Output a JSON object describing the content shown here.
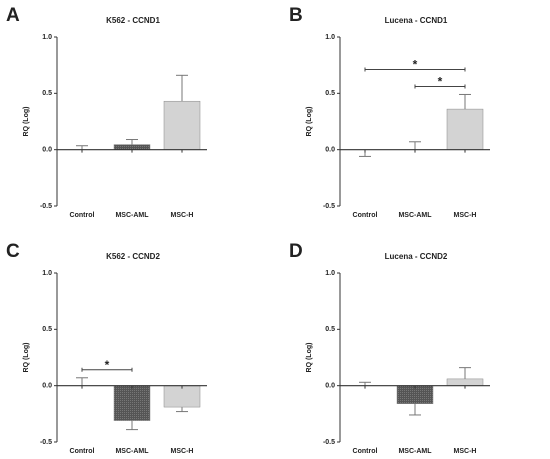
{
  "chart_data": [
    {
      "type": "bar",
      "panel": "A",
      "title": "K562 - CCND1",
      "y_label": "RQ (Log)",
      "categories": [
        "Control",
        "MSC-AML",
        "MSC-H"
      ],
      "values": [
        0,
        0.045,
        0.43
      ],
      "errors": [
        0.035,
        0.045,
        0.23
      ],
      "colors": [
        "#ffffff",
        "#555555",
        "#d3d3d3"
      ],
      "ylim": [
        -0.5,
        1.0
      ],
      "yticks": [
        -0.5,
        {
          "value": 0,
          "label": "0.0"
        },
        0.5,
        {
          "value": 1,
          "label": "1.0"
        }
      ],
      "significance": []
    },
    {
      "type": "bar",
      "panel": "B",
      "title": "Lucena - CCND1",
      "y_label": "RQ (Log)",
      "categories": [
        "Control",
        "MSC-AML",
        "MSC-H"
      ],
      "values": [
        -0.01,
        0,
        0.36
      ],
      "errors": [
        0.05,
        0.07,
        0.13
      ],
      "colors": [
        "#ffffff",
        "#555555",
        "#d3d3d3"
      ],
      "ylim": [
        -0.5,
        1.0
      ],
      "yticks": [
        -0.5,
        {
          "value": 0,
          "label": "0.0"
        },
        0.5,
        {
          "value": 1,
          "label": "1.0"
        }
      ],
      "significance": [
        {
          "between": [
            "MSC-AML",
            "MSC-H"
          ],
          "label": "*"
        },
        {
          "between": [
            "Control",
            "MSC-H"
          ],
          "label": "*"
        }
      ]
    },
    {
      "type": "bar",
      "panel": "C",
      "title": "K562 - CCND2",
      "y_label": "RQ (Log)",
      "categories": [
        "Control",
        "MSC-AML",
        "MSC-H"
      ],
      "values": [
        0,
        -0.31,
        -0.19
      ],
      "errors": [
        0.07,
        0.08,
        0.04
      ],
      "colors": [
        "#ffffff",
        "#555555",
        "#d3d3d3"
      ],
      "ylim": [
        -0.5,
        1.0
      ],
      "yticks": [
        -0.5,
        {
          "value": 0,
          "label": "0.0"
        },
        0.5,
        {
          "value": 1,
          "label": "1.0"
        }
      ],
      "significance": [
        {
          "between": [
            "Control",
            "MSC-AML"
          ],
          "label": "*"
        }
      ]
    },
    {
      "type": "bar",
      "panel": "D",
      "title": "Lucena - CCND2",
      "y_label": "RQ (Log)",
      "categories": [
        "Control",
        "MSC-AML",
        "MSC-H"
      ],
      "values": [
        0,
        -0.16,
        0.06
      ],
      "errors": [
        0.03,
        0.1,
        0.1
      ],
      "colors": [
        "#ffffff",
        "#555555",
        "#d3d3d3"
      ],
      "ylim": [
        -0.5,
        1.0
      ],
      "yticks": [
        -0.5,
        {
          "value": 0,
          "label": "0.0"
        },
        0.5,
        {
          "value": 1,
          "label": "1.0"
        }
      ],
      "significance": []
    }
  ]
}
